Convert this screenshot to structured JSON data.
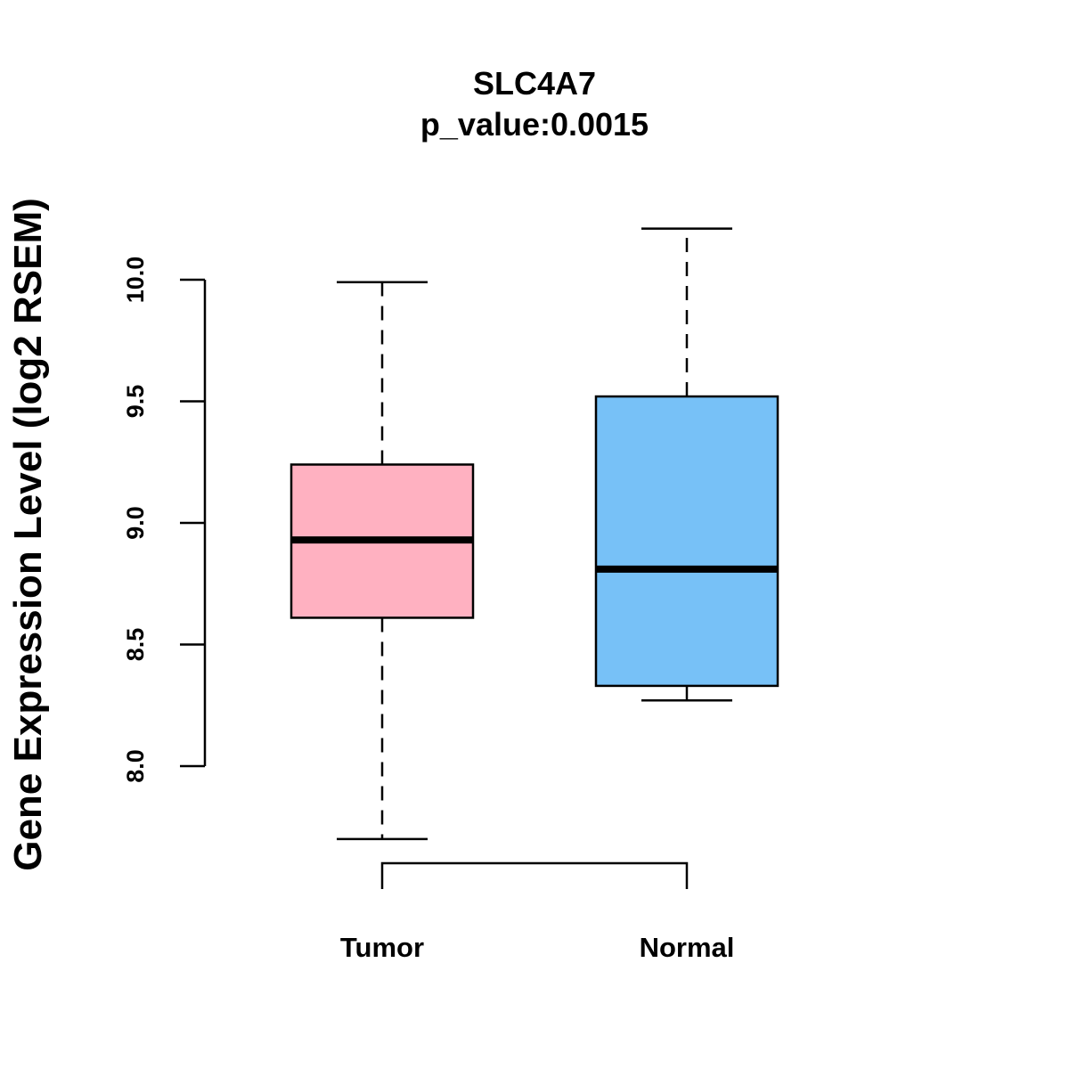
{
  "chart_data": {
    "type": "boxplot",
    "title": "SLC4A7",
    "subtitle": "p_value:0.0015",
    "xlabel": "",
    "ylabel": "Gene Expression Level (log2 RSEM)",
    "ylim": [
      7.6,
      10.3
    ],
    "yticks": [
      8.0,
      8.5,
      9.0,
      9.5,
      10.0
    ],
    "ytick_labels": [
      "8.0",
      "8.5",
      "9.0",
      "9.5",
      "10.0"
    ],
    "grid": false,
    "categories": [
      "Tumor",
      "Normal"
    ],
    "series": [
      {
        "name": "Tumor",
        "color": "#FFB1C1",
        "whisker_low": 7.7,
        "q1": 8.61,
        "median": 8.93,
        "q3": 9.24,
        "whisker_high": 9.99
      },
      {
        "name": "Normal",
        "color": "#77C1F7",
        "whisker_low": 8.27,
        "q1": 8.33,
        "median": 8.81,
        "q3": 9.52,
        "whisker_high": 10.21
      }
    ],
    "comparison_bracket": [
      "Tumor",
      "Normal"
    ]
  }
}
